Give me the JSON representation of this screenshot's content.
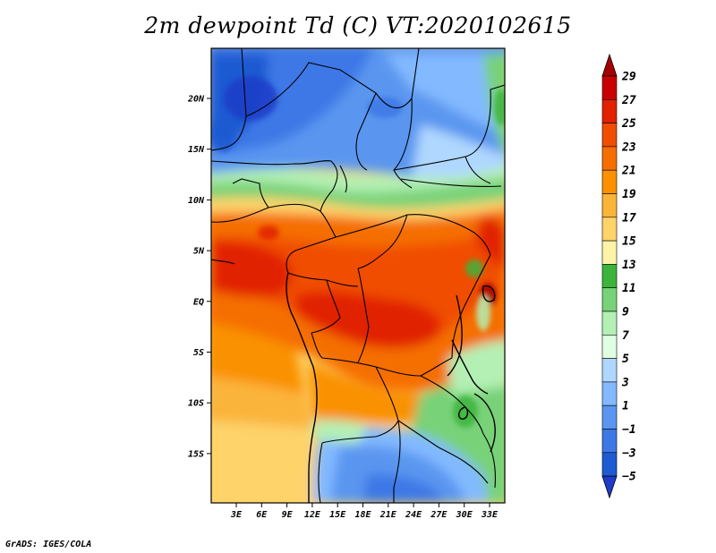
{
  "title": "2m dewpoint Td (C) VT:2020102615",
  "footer": "GrADS: IGES/COLA",
  "lat_ticks": [
    "20N",
    "15N",
    "10N",
    "5N",
    "EQ",
    "5S",
    "10S",
    "15S"
  ],
  "lon_ticks": [
    "3E",
    "6E",
    "9E",
    "12E",
    "15E",
    "18E",
    "21E",
    "24E",
    "27E",
    "30E",
    "33E"
  ],
  "colorbar": {
    "labels": [
      "29",
      "27",
      "25",
      "23",
      "21",
      "19",
      "17",
      "15",
      "13",
      "11",
      "9",
      "7",
      "5",
      "3",
      "1",
      "−1",
      "−3",
      "−5"
    ],
    "colors": [
      "#a50000",
      "#c80000",
      "#e12100",
      "#f04d00",
      "#f56e00",
      "#fa9100",
      "#fbb43a",
      "#fdd36a",
      "#fff3a8",
      "#3cb43c",
      "#78d278",
      "#b4f0b4",
      "#e1ffe1",
      "#afd7ff",
      "#82b9ff",
      "#5a96f0",
      "#3c78e6",
      "#1e5ad2",
      "#1e3cc8"
    ]
  },
  "map": {
    "region": "Central Africa",
    "variable": "2m dewpoint temperature",
    "units": "C"
  }
}
